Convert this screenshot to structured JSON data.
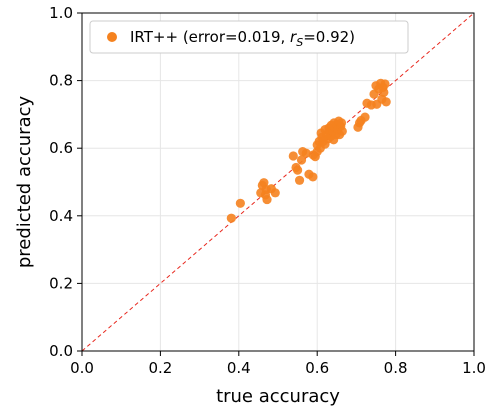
{
  "chart_data": {
    "type": "scatter",
    "xlabel": "true accuracy",
    "ylabel": "predicted accuracy",
    "xlim": [
      0.0,
      1.0
    ],
    "ylim": [
      0.0,
      1.0
    ],
    "x_ticks": [
      "0.0",
      "0.2",
      "0.4",
      "0.6",
      "0.8",
      "1.0"
    ],
    "y_ticks": [
      "0.0",
      "0.2",
      "0.4",
      "0.6",
      "0.8",
      "1.0"
    ],
    "grid": true,
    "legend_position": "top-left",
    "reference_line": {
      "style": "dashed",
      "color": "#e8281e",
      "from": [
        0,
        0
      ],
      "to": [
        1,
        1
      ]
    },
    "series": [
      {
        "name": "IRT++ (error=0.019, r_S=0.92)",
        "legend_prefix": "IRT++ (error=0.019, ",
        "legend_r": "r",
        "legend_sub": "S",
        "legend_suffix": "=0.92)",
        "color": "#f5821f",
        "points": [
          [
            0.381,
            0.393
          ],
          [
            0.404,
            0.437
          ],
          [
            0.456,
            0.468
          ],
          [
            0.46,
            0.49
          ],
          [
            0.464,
            0.498
          ],
          [
            0.468,
            0.462
          ],
          [
            0.472,
            0.448
          ],
          [
            0.47,
            0.478
          ],
          [
            0.483,
            0.48
          ],
          [
            0.493,
            0.468
          ],
          [
            0.539,
            0.577
          ],
          [
            0.546,
            0.543
          ],
          [
            0.55,
            0.535
          ],
          [
            0.555,
            0.505
          ],
          [
            0.56,
            0.565
          ],
          [
            0.563,
            0.59
          ],
          [
            0.572,
            0.585
          ],
          [
            0.579,
            0.523
          ],
          [
            0.589,
            0.515
          ],
          [
            0.59,
            0.58
          ],
          [
            0.595,
            0.575
          ],
          [
            0.6,
            0.59
          ],
          [
            0.6,
            0.61
          ],
          [
            0.605,
            0.62
          ],
          [
            0.608,
            0.6
          ],
          [
            0.61,
            0.645
          ],
          [
            0.612,
            0.632
          ],
          [
            0.615,
            0.62
          ],
          [
            0.62,
            0.612
          ],
          [
            0.62,
            0.655
          ],
          [
            0.624,
            0.64
          ],
          [
            0.628,
            0.628
          ],
          [
            0.63,
            0.66
          ],
          [
            0.632,
            0.648
          ],
          [
            0.635,
            0.635
          ],
          [
            0.636,
            0.668
          ],
          [
            0.64,
            0.65
          ],
          [
            0.642,
            0.625
          ],
          [
            0.643,
            0.675
          ],
          [
            0.645,
            0.66
          ],
          [
            0.648,
            0.64
          ],
          [
            0.65,
            0.67
          ],
          [
            0.652,
            0.655
          ],
          [
            0.655,
            0.68
          ],
          [
            0.657,
            0.64
          ],
          [
            0.66,
            0.665
          ],
          [
            0.662,
            0.675
          ],
          [
            0.664,
            0.65
          ],
          [
            0.704,
            0.662
          ],
          [
            0.708,
            0.675
          ],
          [
            0.712,
            0.682
          ],
          [
            0.722,
            0.692
          ],
          [
            0.727,
            0.733
          ],
          [
            0.738,
            0.728
          ],
          [
            0.745,
            0.76
          ],
          [
            0.75,
            0.785
          ],
          [
            0.752,
            0.73
          ],
          [
            0.757,
            0.775
          ],
          [
            0.762,
            0.792
          ],
          [
            0.765,
            0.745
          ],
          [
            0.768,
            0.78
          ],
          [
            0.77,
            0.765
          ],
          [
            0.773,
            0.79
          ],
          [
            0.776,
            0.737
          ]
        ]
      }
    ]
  }
}
